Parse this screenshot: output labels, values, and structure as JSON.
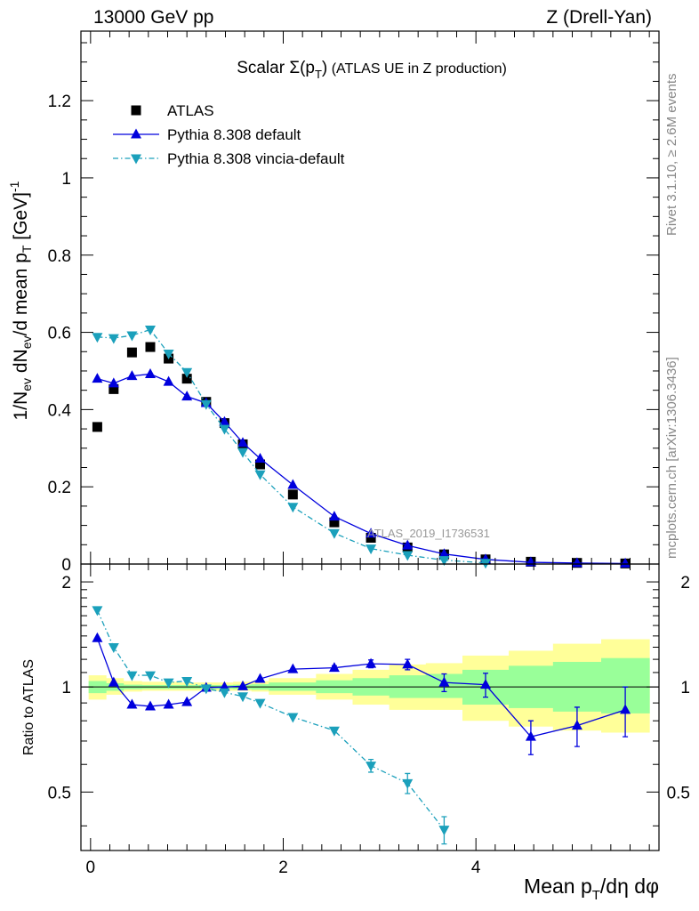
{
  "header": {
    "left": "13000 GeV pp",
    "right": "Z (Drell-Yan)"
  },
  "title": {
    "main": "Scalar Σ(p",
    "sub": "T",
    "close": ")",
    "suffix": " (ATLAS UE in Z production)"
  },
  "side_labels": {
    "rivet": "Rivet 3.1.10, ≥ 2.6M events",
    "mcplots": "mcplots.cern.ch [arXiv:1306.3436]"
  },
  "watermark": "ATLAS_2019_I1736531",
  "legend": [
    {
      "label": "ATLAS",
      "marker": "square",
      "color": "#000000"
    },
    {
      "label": "Pythia 8.308 default",
      "marker": "triangle-up",
      "color": "#0000dd"
    },
    {
      "label": "Pythia 8.308 vincia-default",
      "marker": "triangle-down",
      "color": "#1ba0bb"
    }
  ],
  "axes": {
    "ylabel_main": "1/N_ev dN_ev/d mean p_T [GeV]^-1",
    "ylabel_ratio": "Ratio to ATLAS",
    "xlabel": "Mean p_T/dη dφ"
  },
  "chart_data": [
    {
      "type": "scatter",
      "panel": "main",
      "xlim": [
        -0.1,
        5.9
      ],
      "ylim": [
        0,
        1.38
      ],
      "xticks": [
        0,
        2,
        4
      ],
      "yticks": [
        0,
        0.2,
        0.4,
        0.6,
        0.8,
        1,
        1.2
      ],
      "ytick_labels": [
        "0",
        "0.2",
        "0.4",
        "0.6",
        "0.8",
        "1",
        "1.2"
      ],
      "series": [
        {
          "name": "ATLAS",
          "x": [
            0.07,
            0.24,
            0.43,
            0.62,
            0.81,
            1.0,
            1.2,
            1.39,
            1.58,
            1.76,
            2.1,
            2.53,
            2.91,
            3.29,
            3.67,
            4.1,
            4.57,
            5.05,
            5.55
          ],
          "y": [
            0.355,
            0.453,
            0.548,
            0.562,
            0.532,
            0.48,
            0.42,
            0.365,
            0.31,
            0.258,
            0.18,
            0.108,
            0.068,
            0.043,
            0.025,
            0.012,
            0.006,
            0.003,
            0.0015
          ]
        },
        {
          "name": "Pythia 8.308 default",
          "x": [
            0.07,
            0.24,
            0.43,
            0.62,
            0.81,
            1.0,
            1.2,
            1.39,
            1.58,
            1.76,
            2.1,
            2.53,
            2.91,
            3.29,
            3.67,
            4.1,
            4.57,
            5.05,
            5.55
          ],
          "y": [
            0.48,
            0.468,
            0.487,
            0.492,
            0.472,
            0.434,
            0.417,
            0.368,
            0.314,
            0.273,
            0.205,
            0.123,
            0.079,
            0.048,
            0.026,
            0.012,
            0.0045,
            0.0025,
            0.0013
          ]
        },
        {
          "name": "Pythia 8.308 vincia-default",
          "x": [
            0.07,
            0.24,
            0.43,
            0.62,
            0.81,
            1.0,
            1.2,
            1.39,
            1.58,
            1.76,
            2.1,
            2.53,
            2.91,
            3.29,
            3.67,
            4.1
          ],
          "y": [
            0.588,
            0.585,
            0.592,
            0.607,
            0.545,
            0.497,
            0.414,
            0.35,
            0.29,
            0.232,
            0.148,
            0.08,
            0.04,
            0.023,
            0.01,
            0.003
          ]
        }
      ]
    },
    {
      "type": "line",
      "panel": "ratio",
      "xlim": [
        -0.1,
        5.9
      ],
      "ylim": [
        0.34,
        2.25
      ],
      "log_y": true,
      "xticks": [
        0,
        2,
        4
      ],
      "xtick_labels": [
        "0",
        "2",
        "4"
      ],
      "yticks": [
        0.5,
        1,
        2
      ],
      "ytick_labels": [
        "0.5",
        "1",
        "2"
      ],
      "bands": {
        "edges": [
          -0.02,
          0.16,
          0.34,
          0.53,
          0.72,
          0.9,
          1.1,
          1.3,
          1.48,
          1.67,
          1.85,
          2.34,
          2.72,
          3.1,
          3.48,
          3.86,
          4.34,
          4.8,
          5.3,
          5.8
        ],
        "stat_syst": [
          [
            0.92,
            1.08
          ],
          [
            0.95,
            1.06
          ],
          [
            0.97,
            1.04
          ],
          [
            0.975,
            1.035
          ],
          [
            0.975,
            1.035
          ],
          [
            0.975,
            1.03
          ],
          [
            0.975,
            1.03
          ],
          [
            0.975,
            1.03
          ],
          [
            0.975,
            1.035
          ],
          [
            0.97,
            1.04
          ],
          [
            0.95,
            1.06
          ],
          [
            0.92,
            1.09
          ],
          [
            0.89,
            1.12
          ],
          [
            0.86,
            1.16
          ],
          [
            0.86,
            1.17
          ],
          [
            0.8,
            1.23
          ],
          [
            0.77,
            1.27
          ],
          [
            0.75,
            1.33
          ],
          [
            0.74,
            1.37
          ]
        ],
        "stat": [
          [
            0.96,
            1.04
          ],
          [
            0.975,
            1.025
          ],
          [
            0.985,
            1.015
          ],
          [
            0.987,
            1.013
          ],
          [
            0.987,
            1.013
          ],
          [
            0.987,
            1.013
          ],
          [
            0.987,
            1.013
          ],
          [
            0.987,
            1.013
          ],
          [
            0.985,
            1.015
          ],
          [
            0.982,
            1.018
          ],
          [
            0.975,
            1.03
          ],
          [
            0.96,
            1.045
          ],
          [
            0.945,
            1.06
          ],
          [
            0.93,
            1.08
          ],
          [
            0.93,
            1.09
          ],
          [
            0.89,
            1.12
          ],
          [
            0.87,
            1.15
          ],
          [
            0.85,
            1.18
          ],
          [
            0.84,
            1.21
          ]
        ]
      },
      "series": [
        {
          "name": "Pythia 8.308 default",
          "x": [
            0.07,
            0.24,
            0.43,
            0.62,
            0.81,
            1.0,
            1.2,
            1.39,
            1.58,
            1.76,
            2.1,
            2.53,
            2.91,
            3.29,
            3.67,
            4.1,
            4.57,
            5.05,
            5.55
          ],
          "y": [
            1.38,
            1.03,
            0.89,
            0.88,
            0.89,
            0.905,
            0.995,
            1.0,
            1.005,
            1.055,
            1.125,
            1.135,
            1.165,
            1.16,
            1.03,
            1.015,
            0.72,
            0.775,
            0.86
          ],
          "err": [
            0,
            0,
            0,
            0,
            0,
            0,
            0,
            0,
            0,
            0,
            0,
            0.015,
            0.03,
            0.04,
            0.06,
            0.08,
            0.08,
            0.1,
            0.14
          ]
        },
        {
          "name": "Pythia 8.308 vincia-default",
          "x": [
            0.07,
            0.24,
            0.43,
            0.62,
            0.81,
            1.0,
            1.2,
            1.39,
            1.58,
            1.76,
            2.1,
            2.53,
            2.91,
            3.29,
            3.67
          ],
          "y": [
            1.66,
            1.3,
            1.08,
            1.08,
            1.03,
            1.04,
            0.99,
            0.965,
            0.94,
            0.9,
            0.82,
            0.75,
            0.595,
            0.53,
            0.39
          ],
          "err": [
            0,
            0,
            0,
            0,
            0,
            0,
            0,
            0,
            0,
            0,
            0,
            0,
            0.025,
            0.035,
            0.035
          ]
        }
      ]
    }
  ]
}
